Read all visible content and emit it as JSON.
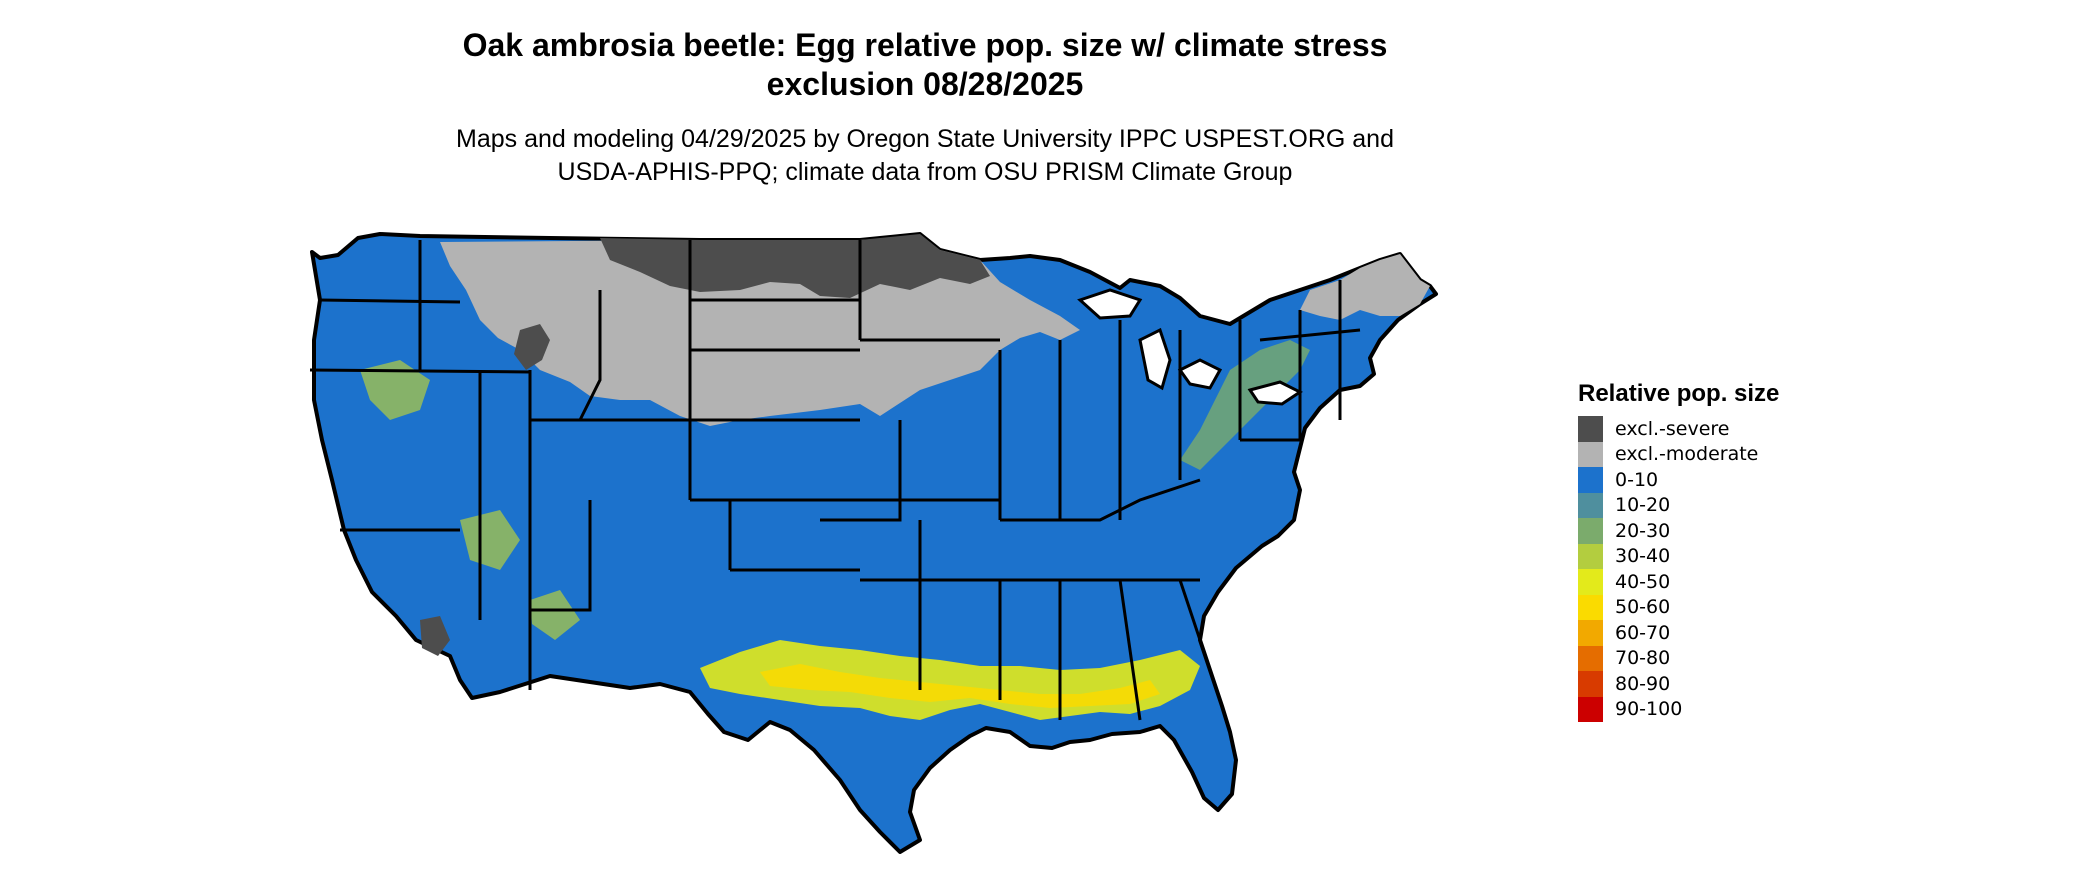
{
  "title_lines": [
    "Oak ambrosia beetle: Egg relative pop. size w/ climate stress",
    "exclusion 08/28/2025"
  ],
  "subtitle_lines": [
    "Maps and modeling 04/29/2025 by Oregon State University IPPC USPEST.ORG and",
    "USDA-APHIS-PPQ; climate data from OSU PRISM Climate Group"
  ],
  "legend": {
    "title": "Relative pop. size",
    "items": [
      {
        "label": "excl.-severe",
        "color": "#4d4d4d"
      },
      {
        "label": "excl.-moderate",
        "color": "#b3b3b3"
      },
      {
        "label": "0-10",
        "color": "#1c72cc"
      },
      {
        "label": "10-20",
        "color": "#4f8f9e"
      },
      {
        "label": "20-30",
        "color": "#7bab6c"
      },
      {
        "label": "30-40",
        "color": "#b3cd3f"
      },
      {
        "label": "40-50",
        "color": "#e3ea1b"
      },
      {
        "label": "50-60",
        "color": "#fadb00"
      },
      {
        "label": "60-70",
        "color": "#f2a900"
      },
      {
        "label": "70-80",
        "color": "#e56d00"
      },
      {
        "label": "80-90",
        "color": "#d83b00"
      },
      {
        "label": "90-100",
        "color": "#cc0000"
      }
    ]
  },
  "map": {
    "region": "contiguous-united-states",
    "border_color": "#000000"
  }
}
